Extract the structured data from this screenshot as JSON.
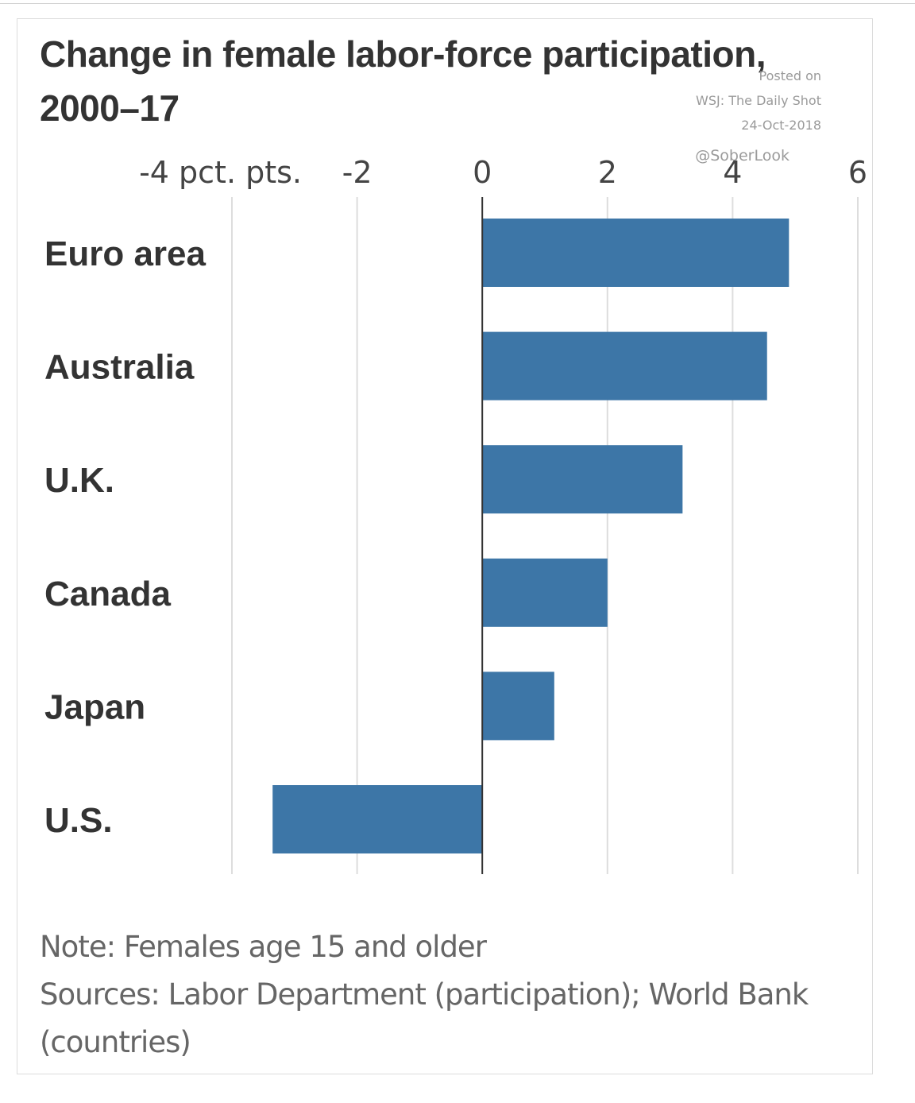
{
  "chart_data": {
    "type": "bar",
    "orientation": "horizontal",
    "title": "Change in female labor-force participation, 2000–17",
    "categories": [
      "Euro area",
      "Australia",
      "U.K.",
      "Canada",
      "Japan",
      "U.S."
    ],
    "values": [
      4.9,
      4.55,
      3.2,
      2.0,
      1.15,
      -3.35
    ],
    "xlim": [
      -4,
      6
    ],
    "xticks": [
      -4,
      -2,
      0,
      2,
      4,
      6
    ],
    "xtick_labels": [
      "-4 pct. pts.",
      "-2",
      "0",
      "2",
      "4",
      "6"
    ],
    "grid": true,
    "bar_color": "#3d76a7"
  },
  "watermark": {
    "line1": "Posted on",
    "line2": "WSJ: The Daily Shot",
    "line3": "24-Oct-2018",
    "handle": "@SoberLook"
  },
  "footer": {
    "note": "Note: Females age 15 and older",
    "sources": "Sources: Labor Department (participation); World Bank (countries)"
  }
}
